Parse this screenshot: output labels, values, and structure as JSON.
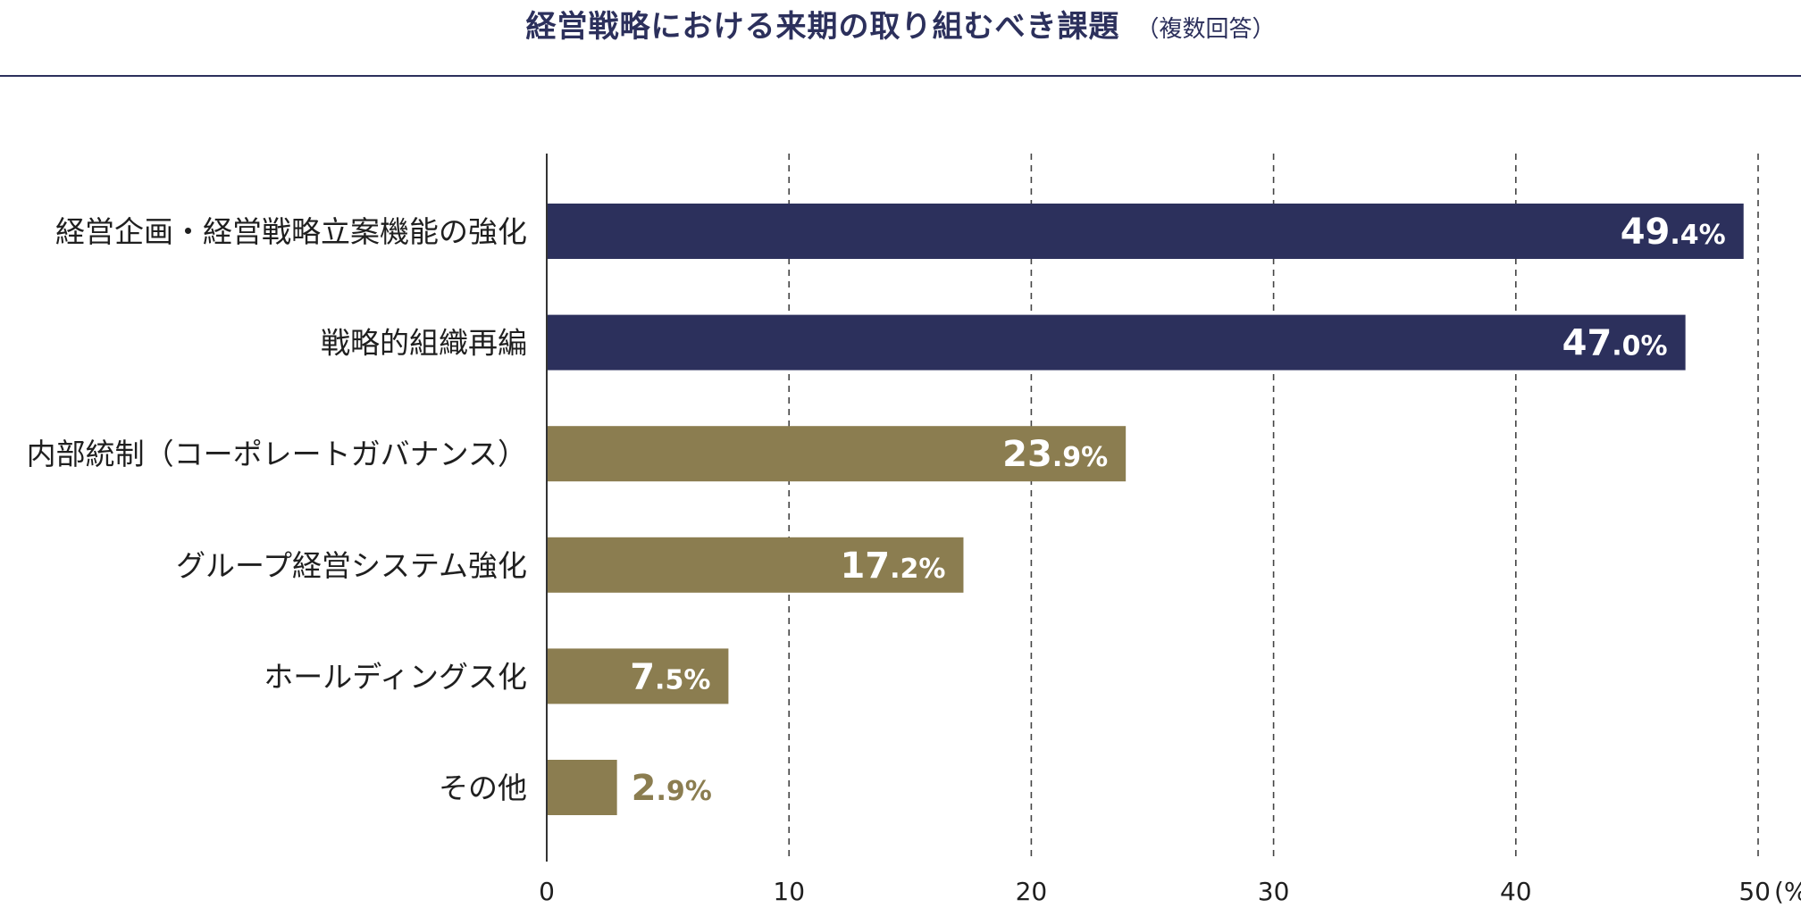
{
  "header": {
    "title": "経営戦略における来期の取り組むべき課題",
    "subtitle": "（複数回答）"
  },
  "colors": {
    "navy": "#2c305c",
    "olive": "#8b7d50",
    "axis": "#333333",
    "grid": "#444444"
  },
  "chart_data": {
    "type": "bar",
    "orientation": "horizontal",
    "title": "経営戦略における来期の取り組むべき課題",
    "subtitle": "（複数回答）",
    "categories": [
      "経営企画・経営戦略立案機能の強化",
      "戦略的組織再編",
      "内部統制（コーポレートガバナンス）",
      "グループ経営システム強化",
      "ホールディングス化",
      "その他"
    ],
    "values": [
      49.4,
      47.0,
      23.9,
      17.2,
      7.5,
      2.9
    ],
    "value_labels": [
      {
        "main": "49",
        "dec": ".4",
        "pct": "%"
      },
      {
        "main": "47",
        "dec": ".0",
        "pct": "%"
      },
      {
        "main": "23",
        "dec": ".9",
        "pct": "%"
      },
      {
        "main": "17",
        "dec": ".2",
        "pct": "%"
      },
      {
        "main": "7",
        "dec": ".5",
        "pct": "%"
      },
      {
        "main": "2",
        "dec": ".9",
        "pct": "%"
      }
    ],
    "bar_colors": [
      "#2c305c",
      "#2c305c",
      "#8b7d50",
      "#8b7d50",
      "#8b7d50",
      "#8b7d50"
    ],
    "xlim": [
      0,
      50
    ],
    "xticks": [
      0,
      10,
      20,
      30,
      40,
      50
    ],
    "xtick_labels": [
      "0",
      "10",
      "20",
      "30",
      "40",
      "50"
    ],
    "x_unit": "(%)",
    "grid": "vertical dashed",
    "legend": "none"
  }
}
